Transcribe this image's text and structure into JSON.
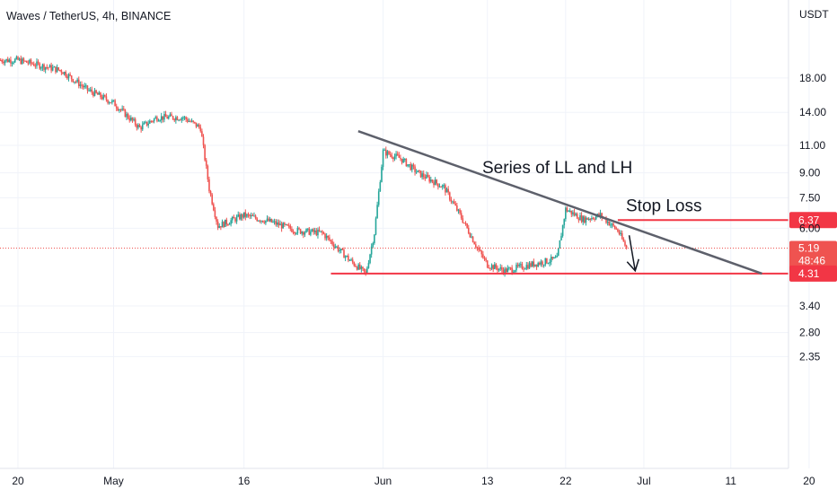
{
  "header": {
    "title": "Waves / TetherUS, 4h, BINANCE"
  },
  "colors": {
    "up": "#26a69a",
    "down": "#ef5350",
    "level": "#f23645",
    "trend": "#5d606b",
    "grid": "#f0f3fa"
  },
  "chart_data": {
    "type": "candlestick",
    "title": "Waves / TetherUS, 4h, BINANCE",
    "y_axis": {
      "unit_label": "USDT",
      "scale": "log",
      "ticks": [
        "18.00",
        "14.00",
        "11.00",
        "9.00",
        "7.50",
        "6.00",
        "3.40",
        "2.80",
        "2.35"
      ]
    },
    "x_axis": {
      "ticks": [
        "20",
        "May",
        "16",
        "Jun",
        "13",
        "22",
        "Jul",
        "11",
        "20"
      ]
    },
    "price_series": {
      "interval": "4h",
      "points": [
        {
          "date": "Apr 20",
          "close": 20.5
        },
        {
          "date": "Apr 25",
          "close": 19.0
        },
        {
          "date": "Apr 28",
          "close": 16.5
        },
        {
          "date": "May 1",
          "close": 15.0
        },
        {
          "date": "May 4",
          "close": 12.5
        },
        {
          "date": "May 6",
          "close": 13.5
        },
        {
          "date": "May 9",
          "close": 13.5
        },
        {
          "date": "May 11",
          "close": 12.5
        },
        {
          "date": "May 12",
          "close": 8.0
        },
        {
          "date": "May 13",
          "close": 6.1
        },
        {
          "date": "May 16",
          "close": 6.6
        },
        {
          "date": "May 19",
          "close": 6.3
        },
        {
          "date": "May 22",
          "close": 5.9
        },
        {
          "date": "May 25",
          "close": 5.8
        },
        {
          "date": "May 28",
          "close": 4.8
        },
        {
          "date": "May 30",
          "close": 4.3
        },
        {
          "date": "May 31",
          "close": 5.8
        },
        {
          "date": "Jun 1",
          "close": 10.5
        },
        {
          "date": "Jun 3",
          "close": 10.0
        },
        {
          "date": "Jun 5",
          "close": 9.0
        },
        {
          "date": "Jun 8",
          "close": 8.1
        },
        {
          "date": "Jun 10",
          "close": 6.5
        },
        {
          "date": "Jun 12",
          "close": 5.1
        },
        {
          "date": "Jun 13",
          "close": 4.6
        },
        {
          "date": "Jun 15",
          "close": 4.4
        },
        {
          "date": "Jun 18",
          "close": 4.6
        },
        {
          "date": "Jun 21",
          "close": 4.8
        },
        {
          "date": "Jun 22",
          "close": 6.9
        },
        {
          "date": "Jun 24",
          "close": 6.4
        },
        {
          "date": "Jun 26",
          "close": 6.6
        },
        {
          "date": "Jun 28",
          "close": 5.9
        },
        {
          "date": "Jun 29",
          "close": 5.19
        }
      ]
    },
    "horizontal_levels": [
      {
        "label": "Stop Loss",
        "value": 6.37,
        "badge": "6.37",
        "start": "Jun 28",
        "end": "right edge"
      },
      {
        "label": "",
        "value": 4.31,
        "badge": "4.31",
        "start": "May 26",
        "end": "right edge"
      }
    ],
    "trend_line": {
      "label": "Series of LL and LH",
      "start": {
        "date": "May 31",
        "value": 12.2
      },
      "end": {
        "date": "Jul 15",
        "value": 4.31
      }
    },
    "arrow": {
      "direction": "down",
      "from": {
        "date": "Jun 29",
        "value": 5.7
      },
      "to": {
        "date": "Jun 30",
        "value": 4.4
      }
    },
    "last_price": {
      "value": "5.19",
      "countdown": "48:46"
    }
  }
}
